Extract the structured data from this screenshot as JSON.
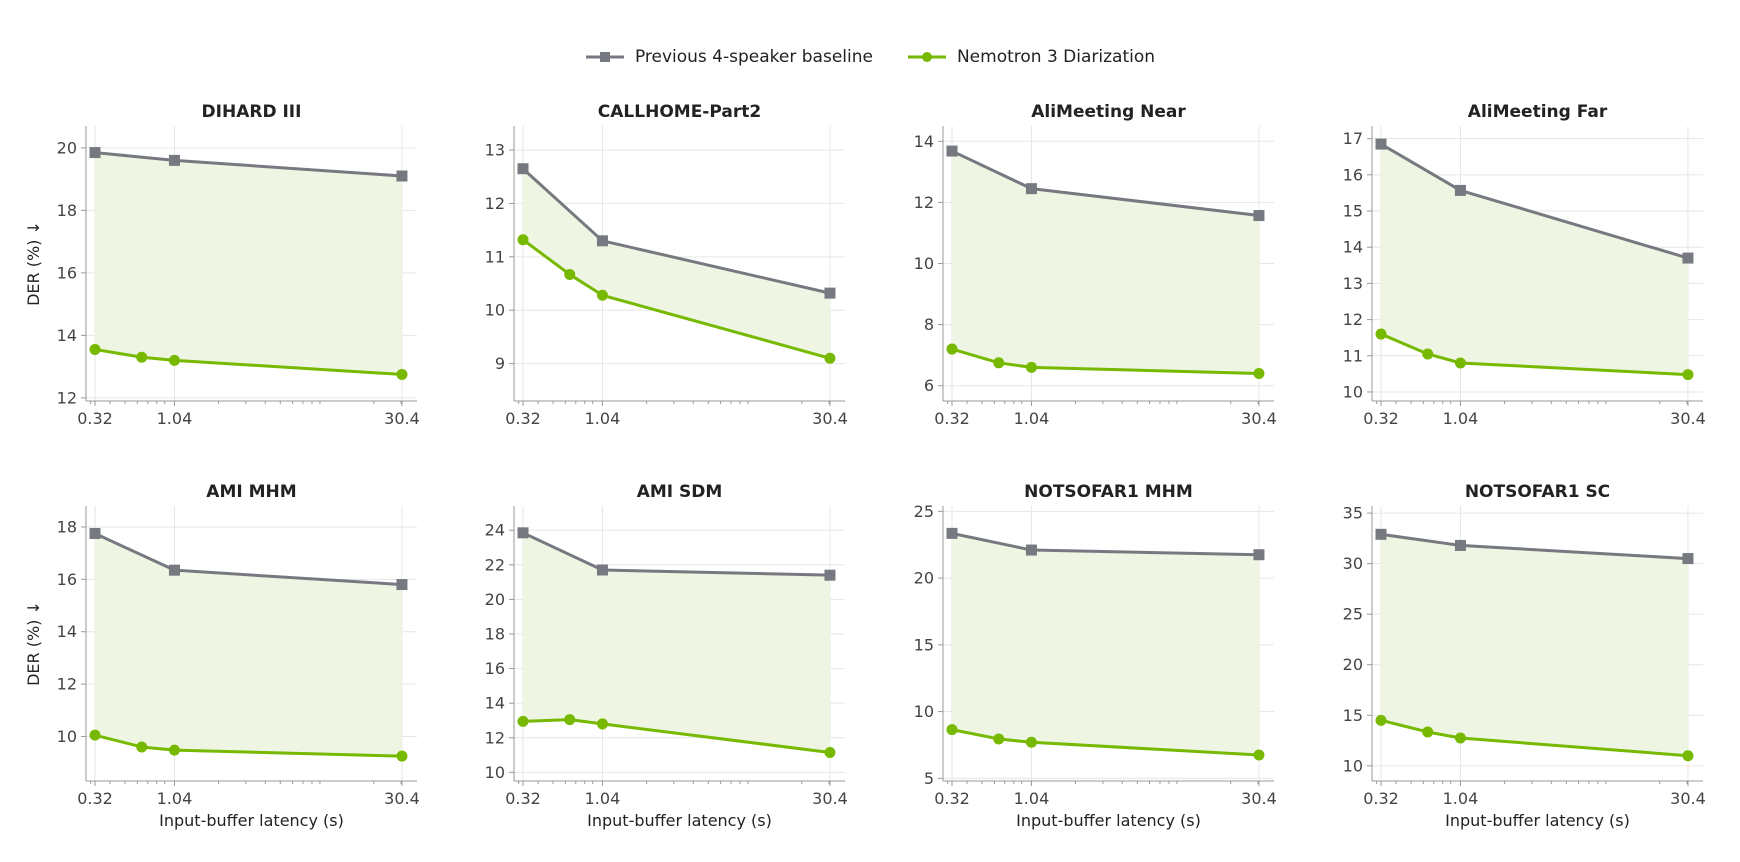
{
  "legend": [
    {
      "name": "Previous 4-speaker baseline",
      "color": "#767a80",
      "marker": "square"
    },
    {
      "name": "Nemotron 3 Diarization",
      "color": "#76b900",
      "marker": "circle"
    }
  ],
  "colors": {
    "baseline": "#767a80",
    "ours": "#76b900",
    "fill": "#eef5e2",
    "grid": "#e6e6e6",
    "axis": "#999999"
  },
  "chart_data": [
    {
      "type": "line",
      "title": "DIHARD III",
      "ylabel": "DER (%) ↓",
      "xlabel": "",
      "x_scale": "log",
      "xlim": [
        0.28,
        38
      ],
      "xticks": [
        "0.32",
        "1.04",
        "30.4"
      ],
      "ylim": [
        11.9,
        20.7
      ],
      "yticks": [
        12,
        14,
        16,
        18,
        20
      ],
      "series": [
        {
          "name": "Previous 4-speaker baseline",
          "x": [
            0.32,
            1.04,
            30.4
          ],
          "values": [
            19.85,
            19.6,
            19.1
          ]
        },
        {
          "name": "Nemotron 3 Diarization",
          "x": [
            0.32,
            0.64,
            1.04,
            30.4
          ],
          "values": [
            13.55,
            13.3,
            13.2,
            12.75
          ]
        }
      ]
    },
    {
      "type": "line",
      "title": "CALLHOME-Part2",
      "ylabel": "",
      "xlabel": "",
      "x_scale": "log",
      "xlim": [
        0.28,
        38
      ],
      "xticks": [
        "0.32",
        "1.04",
        "30.4"
      ],
      "ylim": [
        8.3,
        13.45
      ],
      "yticks": [
        9,
        10,
        11,
        12,
        13
      ],
      "series": [
        {
          "name": "Previous 4-speaker baseline",
          "x": [
            0.32,
            1.04,
            30.4
          ],
          "values": [
            12.65,
            11.3,
            10.32
          ]
        },
        {
          "name": "Nemotron 3 Diarization",
          "x": [
            0.32,
            0.64,
            1.04,
            30.4
          ],
          "values": [
            11.32,
            10.67,
            10.28,
            9.1
          ]
        }
      ]
    },
    {
      "type": "line",
      "title": "AliMeeting Near",
      "ylabel": "",
      "xlabel": "",
      "x_scale": "log",
      "xlim": [
        0.28,
        38
      ],
      "xticks": [
        "0.32",
        "1.04",
        "30.4"
      ],
      "ylim": [
        5.5,
        14.5
      ],
      "yticks": [
        6,
        8,
        10,
        12,
        14
      ],
      "series": [
        {
          "name": "Previous 4-speaker baseline",
          "x": [
            0.32,
            1.04,
            30.4
          ],
          "values": [
            13.68,
            12.45,
            11.57
          ]
        },
        {
          "name": "Nemotron 3 Diarization",
          "x": [
            0.32,
            0.64,
            1.04,
            30.4
          ],
          "values": [
            7.2,
            6.75,
            6.6,
            6.4
          ]
        }
      ]
    },
    {
      "type": "line",
      "title": "AliMeeting Far",
      "ylabel": "",
      "xlabel": "",
      "x_scale": "log",
      "xlim": [
        0.28,
        38
      ],
      "xticks": [
        "0.32",
        "1.04",
        "30.4"
      ],
      "ylim": [
        9.75,
        17.35
      ],
      "yticks": [
        10,
        11,
        12,
        13,
        14,
        15,
        16,
        17
      ],
      "series": [
        {
          "name": "Previous 4-speaker baseline",
          "x": [
            0.32,
            1.04,
            30.4
          ],
          "values": [
            16.85,
            15.57,
            13.7
          ]
        },
        {
          "name": "Nemotron 3 Diarization",
          "x": [
            0.32,
            0.64,
            1.04,
            30.4
          ],
          "values": [
            11.6,
            11.05,
            10.8,
            10.48
          ]
        }
      ]
    },
    {
      "type": "line",
      "title": "AMI MHM",
      "ylabel": "DER (%) ↓",
      "xlabel": "Input-buffer latency (s)",
      "x_scale": "log",
      "xlim": [
        0.28,
        38
      ],
      "xticks": [
        "0.32",
        "1.04",
        "30.4"
      ],
      "ylim": [
        8.3,
        18.8
      ],
      "yticks": [
        10,
        12,
        14,
        16,
        18
      ],
      "series": [
        {
          "name": "Previous 4-speaker baseline",
          "x": [
            0.32,
            1.04,
            30.4
          ],
          "values": [
            17.75,
            16.35,
            15.8
          ]
        },
        {
          "name": "Nemotron 3 Diarization",
          "x": [
            0.32,
            0.64,
            1.04,
            30.4
          ],
          "values": [
            10.05,
            9.6,
            9.48,
            9.25
          ]
        }
      ]
    },
    {
      "type": "line",
      "title": "AMI SDM",
      "ylabel": "",
      "xlabel": "Input-buffer latency (s)",
      "x_scale": "log",
      "xlim": [
        0.28,
        38
      ],
      "xticks": [
        "0.32",
        "1.04",
        "30.4"
      ],
      "ylim": [
        9.5,
        25.4
      ],
      "yticks": [
        10,
        12,
        14,
        16,
        18,
        20,
        22,
        24
      ],
      "series": [
        {
          "name": "Previous 4-speaker baseline",
          "x": [
            0.32,
            1.04,
            30.4
          ],
          "values": [
            23.85,
            21.7,
            21.4
          ]
        },
        {
          "name": "Nemotron 3 Diarization",
          "x": [
            0.32,
            0.64,
            1.04,
            30.4
          ],
          "values": [
            12.95,
            13.05,
            12.8,
            11.15
          ]
        }
      ]
    },
    {
      "type": "line",
      "title": "NOTSOFAR1 MHM",
      "ylabel": "",
      "xlabel": "Input-buffer latency (s)",
      "x_scale": "log",
      "xlim": [
        0.28,
        38
      ],
      "xticks": [
        "0.32",
        "1.04",
        "30.4"
      ],
      "ylim": [
        4.8,
        25.4
      ],
      "yticks": [
        5,
        10,
        15,
        20,
        25
      ],
      "series": [
        {
          "name": "Previous 4-speaker baseline",
          "x": [
            0.32,
            1.04,
            30.4
          ],
          "values": [
            23.35,
            22.1,
            21.75
          ]
        },
        {
          "name": "Nemotron 3 Diarization",
          "x": [
            0.32,
            0.64,
            1.04,
            30.4
          ],
          "values": [
            8.65,
            7.95,
            7.7,
            6.75
          ]
        }
      ]
    },
    {
      "type": "line",
      "title": "NOTSOFAR1 SC",
      "ylabel": "",
      "xlabel": "Input-buffer latency (s)",
      "x_scale": "log",
      "xlim": [
        0.28,
        38
      ],
      "xticks": [
        "0.32",
        "1.04",
        "30.4"
      ],
      "ylim": [
        8.5,
        35.7
      ],
      "yticks": [
        10,
        15,
        20,
        25,
        30,
        35
      ],
      "series": [
        {
          "name": "Previous 4-speaker baseline",
          "x": [
            0.32,
            1.04,
            30.4
          ],
          "values": [
            32.9,
            31.8,
            30.5
          ]
        },
        {
          "name": "Nemotron 3 Diarization",
          "x": [
            0.32,
            0.64,
            1.04,
            30.4
          ],
          "values": [
            14.5,
            13.35,
            12.75,
            11.0
          ]
        }
      ]
    }
  ]
}
